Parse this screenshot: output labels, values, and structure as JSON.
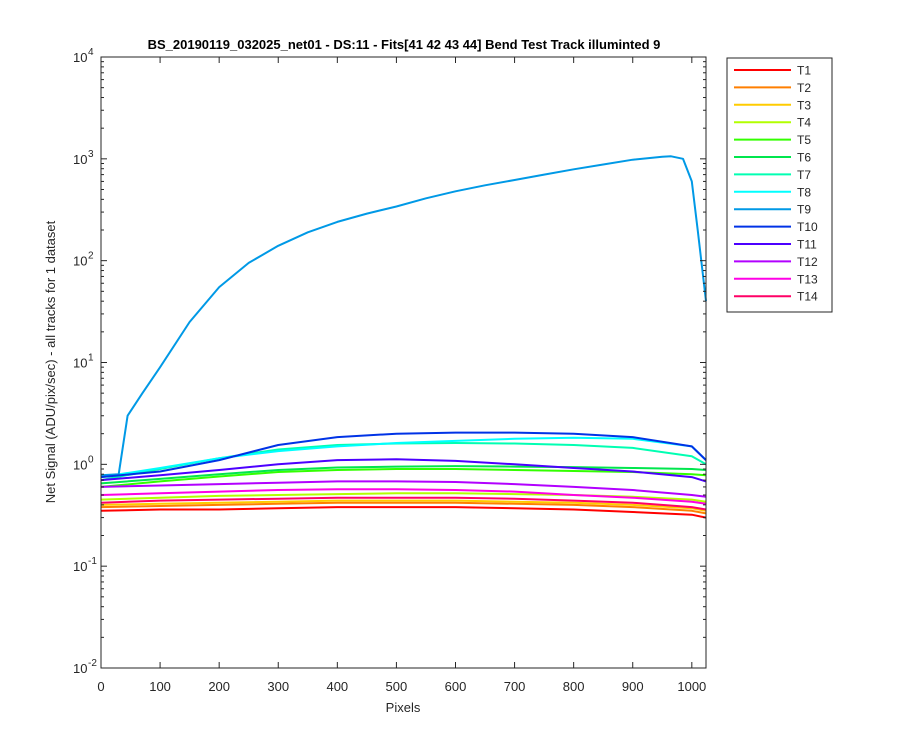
{
  "chart_data": {
    "type": "line",
    "title": "BS_20190119_032025_net01 - DS:11 - Fits[41  42  43  44]   Bend Test        Track illuminted 9",
    "xlabel": "Pixels",
    "ylabel": "Net Signal (ADU/pix/sec) - all tracks for 1 dataset",
    "xlim": [
      0,
      1024
    ],
    "ylim": [
      0.01,
      10000
    ],
    "yscale": "log",
    "grid": false,
    "legend_position": "outside-top-right",
    "x_ticks": [
      "0",
      "100",
      "200",
      "300",
      "400",
      "500",
      "600",
      "700",
      "800",
      "900",
      "1000"
    ],
    "y_ticks": [
      {
        "base": "10",
        "exp": "-2"
      },
      {
        "base": "10",
        "exp": "-1"
      },
      {
        "base": "10",
        "exp": "0"
      },
      {
        "base": "10",
        "exp": "1"
      },
      {
        "base": "10",
        "exp": "2"
      },
      {
        "base": "10",
        "exp": "3"
      },
      {
        "base": "10",
        "exp": "4"
      }
    ],
    "series": [
      {
        "name": "T1",
        "color": "#ff0000",
        "x": [
          0,
          100,
          200,
          300,
          400,
          500,
          600,
          700,
          800,
          900,
          1000,
          1024
        ],
        "y": [
          0.35,
          0.36,
          0.36,
          0.37,
          0.38,
          0.38,
          0.38,
          0.37,
          0.36,
          0.34,
          0.32,
          0.3
        ]
      },
      {
        "name": "T2",
        "color": "#ff7f00",
        "x": [
          0,
          100,
          200,
          300,
          400,
          500,
          600,
          700,
          800,
          900,
          1000,
          1024
        ],
        "y": [
          0.38,
          0.39,
          0.4,
          0.41,
          0.42,
          0.42,
          0.42,
          0.41,
          0.4,
          0.38,
          0.35,
          0.33
        ]
      },
      {
        "name": "T3",
        "color": "#ffcc00",
        "x": [
          0,
          100,
          200,
          300,
          400,
          500,
          600,
          700,
          800,
          900,
          1000,
          1024
        ],
        "y": [
          0.4,
          0.41,
          0.42,
          0.43,
          0.44,
          0.44,
          0.44,
          0.43,
          0.42,
          0.4,
          0.37,
          0.35
        ]
      },
      {
        "name": "T4",
        "color": "#b2ff00",
        "x": [
          0,
          100,
          200,
          300,
          400,
          500,
          600,
          700,
          800,
          900,
          1000,
          1024
        ],
        "y": [
          0.45,
          0.47,
          0.49,
          0.5,
          0.51,
          0.52,
          0.52,
          0.51,
          0.5,
          0.48,
          0.45,
          0.43
        ]
      },
      {
        "name": "T5",
        "color": "#33ff00",
        "x": [
          0,
          100,
          200,
          300,
          400,
          500,
          600,
          700,
          800,
          900,
          1000,
          1024
        ],
        "y": [
          0.6,
          0.68,
          0.76,
          0.84,
          0.88,
          0.9,
          0.9,
          0.88,
          0.86,
          0.84,
          0.8,
          0.78
        ]
      },
      {
        "name": "T6",
        "color": "#00e64d",
        "x": [
          0,
          100,
          200,
          300,
          400,
          500,
          600,
          700,
          800,
          900,
          1000,
          1024
        ],
        "y": [
          0.65,
          0.72,
          0.8,
          0.88,
          0.93,
          0.95,
          0.96,
          0.95,
          0.94,
          0.92,
          0.9,
          0.88
        ]
      },
      {
        "name": "T7",
        "color": "#00ffb2",
        "x": [
          0,
          100,
          200,
          300,
          400,
          500,
          600,
          700,
          800,
          900,
          1000,
          1024
        ],
        "y": [
          0.7,
          0.9,
          1.15,
          1.4,
          1.55,
          1.6,
          1.62,
          1.6,
          1.55,
          1.45,
          1.2,
          1.0
        ]
      },
      {
        "name": "T8",
        "color": "#00ffff",
        "x": [
          0,
          100,
          200,
          300,
          400,
          500,
          600,
          700,
          800,
          900,
          1000,
          1024
        ],
        "y": [
          0.75,
          0.92,
          1.15,
          1.35,
          1.5,
          1.62,
          1.7,
          1.78,
          1.82,
          1.78,
          1.5,
          1.1
        ]
      },
      {
        "name": "T9",
        "color": "#0099e6",
        "x": [
          0,
          30,
          45,
          70,
          100,
          150,
          200,
          250,
          300,
          350,
          400,
          450,
          500,
          550,
          600,
          650,
          700,
          750,
          800,
          850,
          900,
          950,
          965,
          985,
          1000,
          1010,
          1024
        ],
        "y": [
          0.78,
          0.8,
          3.0,
          5.0,
          9.0,
          25,
          55,
          95,
          140,
          190,
          240,
          290,
          340,
          410,
          480,
          550,
          620,
          700,
          790,
          880,
          980,
          1050,
          1060,
          1000,
          600,
          200,
          40
        ]
      },
      {
        "name": "T10",
        "color": "#0033e6",
        "x": [
          0,
          100,
          200,
          300,
          400,
          500,
          600,
          700,
          800,
          900,
          1000,
          1024
        ],
        "y": [
          0.75,
          0.85,
          1.1,
          1.55,
          1.85,
          2.0,
          2.05,
          2.05,
          2.0,
          1.85,
          1.5,
          1.1
        ]
      },
      {
        "name": "T11",
        "color": "#4c00ff",
        "x": [
          0,
          100,
          200,
          300,
          400,
          500,
          600,
          700,
          800,
          900,
          1000,
          1024
        ],
        "y": [
          0.7,
          0.78,
          0.88,
          1.0,
          1.1,
          1.12,
          1.08,
          1.0,
          0.92,
          0.85,
          0.75,
          0.68
        ]
      },
      {
        "name": "T12",
        "color": "#b200ff",
        "x": [
          0,
          100,
          200,
          300,
          400,
          500,
          600,
          700,
          800,
          900,
          1000,
          1024
        ],
        "y": [
          0.6,
          0.62,
          0.64,
          0.66,
          0.68,
          0.68,
          0.67,
          0.64,
          0.6,
          0.56,
          0.5,
          0.48
        ]
      },
      {
        "name": "T13",
        "color": "#ff00e6",
        "x": [
          0,
          100,
          200,
          300,
          400,
          500,
          600,
          700,
          800,
          900,
          1000,
          1024
        ],
        "y": [
          0.5,
          0.52,
          0.54,
          0.56,
          0.57,
          0.57,
          0.56,
          0.54,
          0.5,
          0.47,
          0.43,
          0.41
        ]
      },
      {
        "name": "T14",
        "color": "#ff0066",
        "x": [
          0,
          100,
          200,
          300,
          400,
          500,
          600,
          700,
          800,
          900,
          1000,
          1024
        ],
        "y": [
          0.42,
          0.44,
          0.45,
          0.46,
          0.47,
          0.47,
          0.47,
          0.46,
          0.44,
          0.42,
          0.38,
          0.36
        ]
      }
    ]
  }
}
